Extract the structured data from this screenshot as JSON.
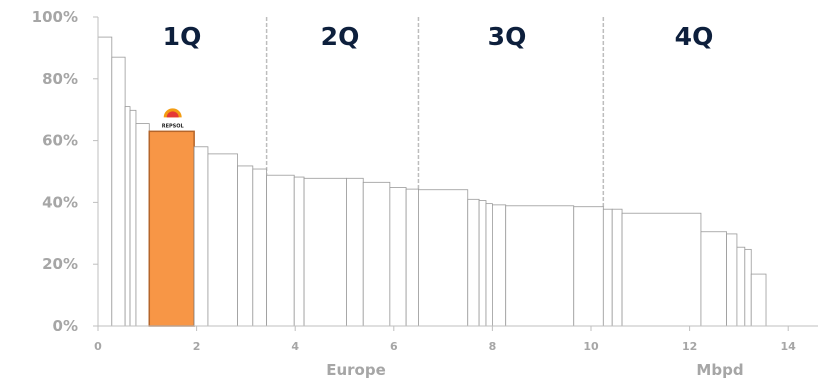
{
  "chart_data": {
    "type": "bar",
    "subtype": "variable-width cost curve",
    "xlabel_left": "Europe",
    "xlabel_right": "Mbpd",
    "xlim": [
      0,
      14.6
    ],
    "ylim": [
      0,
      100
    ],
    "y_ticks": [
      "0%",
      "20%",
      "40%",
      "60%",
      "80%",
      "100%"
    ],
    "x_ticks": [
      "0",
      "2",
      "4",
      "6",
      "8",
      "10",
      "12",
      "14"
    ],
    "grid": false,
    "quartiles": [
      {
        "label": "1Q",
        "start": 0,
        "end": 3.42
      },
      {
        "label": "2Q",
        "start": 3.42,
        "end": 6.5
      },
      {
        "label": "3Q",
        "start": 6.5,
        "end": 10.25
      },
      {
        "label": "4Q",
        "start": 10.25,
        "end": 14.6
      }
    ],
    "highlight_color": "#f79646",
    "highlight_label": "REPSOL",
    "series": [
      {
        "x0": 0.0,
        "x1": 0.28,
        "y": 93.5
      },
      {
        "x0": 0.28,
        "x1": 0.55,
        "y": 87.0
      },
      {
        "x0": 0.55,
        "x1": 0.65,
        "y": 71.0
      },
      {
        "x0": 0.65,
        "x1": 0.77,
        "y": 69.8
      },
      {
        "x0": 0.77,
        "x1": 1.04,
        "y": 65.5
      },
      {
        "x0": 1.04,
        "x1": 1.95,
        "y": 63.0,
        "highlight": true
      },
      {
        "x0": 1.95,
        "x1": 2.23,
        "y": 58.0
      },
      {
        "x0": 2.23,
        "x1": 2.83,
        "y": 55.7
      },
      {
        "x0": 2.83,
        "x1": 3.14,
        "y": 51.8
      },
      {
        "x0": 3.14,
        "x1": 3.42,
        "y": 50.8
      },
      {
        "x0": 3.42,
        "x1": 3.98,
        "y": 48.8
      },
      {
        "x0": 3.98,
        "x1": 4.18,
        "y": 48.2
      },
      {
        "x0": 4.18,
        "x1": 5.04,
        "y": 47.8
      },
      {
        "x0": 5.04,
        "x1": 5.38,
        "y": 47.8
      },
      {
        "x0": 5.38,
        "x1": 5.92,
        "y": 46.5
      },
      {
        "x0": 5.92,
        "x1": 6.25,
        "y": 44.8
      },
      {
        "x0": 6.25,
        "x1": 6.5,
        "y": 44.3
      },
      {
        "x0": 6.5,
        "x1": 7.5,
        "y": 44.1
      },
      {
        "x0": 7.5,
        "x1": 7.73,
        "y": 41.0
      },
      {
        "x0": 7.73,
        "x1": 7.87,
        "y": 40.6
      },
      {
        "x0": 7.87,
        "x1": 8.0,
        "y": 39.6
      },
      {
        "x0": 8.0,
        "x1": 8.27,
        "y": 39.2
      },
      {
        "x0": 8.27,
        "x1": 9.65,
        "y": 38.9
      },
      {
        "x0": 9.65,
        "x1": 10.25,
        "y": 38.6
      },
      {
        "x0": 10.25,
        "x1": 10.43,
        "y": 37.8
      },
      {
        "x0": 10.43,
        "x1": 10.63,
        "y": 37.8
      },
      {
        "x0": 10.63,
        "x1": 12.23,
        "y": 36.5
      },
      {
        "x0": 12.23,
        "x1": 12.75,
        "y": 30.5
      },
      {
        "x0": 12.75,
        "x1": 12.96,
        "y": 29.8
      },
      {
        "x0": 12.96,
        "x1": 13.12,
        "y": 25.5
      },
      {
        "x0": 13.12,
        "x1": 13.25,
        "y": 24.8
      },
      {
        "x0": 13.25,
        "x1": 13.55,
        "y": 16.8
      }
    ]
  }
}
